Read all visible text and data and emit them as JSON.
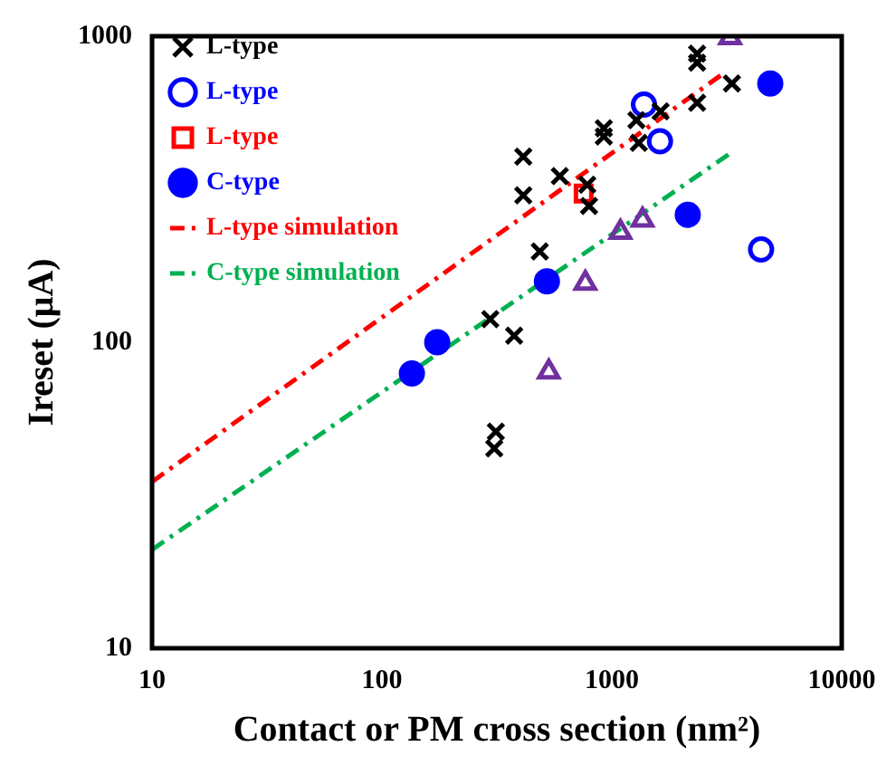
{
  "chart_data": {
    "type": "scatter",
    "xlabel": "Contact or PM cross section (nm²)",
    "ylabel": "Ireset (μA)",
    "log": "xy",
    "xlim": [
      10,
      10000
    ],
    "ylim": [
      10,
      1000
    ],
    "xticks": [
      10,
      100,
      1000,
      10000
    ],
    "yticks": [
      10,
      100,
      1000
    ],
    "grid": false,
    "legend": "top left",
    "series": [
      {
        "name": "L-type",
        "color": "#000000",
        "marker": "cross",
        "x": [
          412,
          412,
          594,
          782,
          796,
          486,
          296,
          376,
          313,
          308,
          923,
          923,
          1280,
          1310,
          1630,
          2350,
          2350,
          2350,
          3330
        ],
        "values": [
          404,
          302,
          349,
          327,
          279,
          198,
          119,
          105,
          51,
          45,
          500,
          470,
          532,
          448,
          568,
          877,
          820,
          606,
          701
        ]
      },
      {
        "name": "L-type",
        "color": "#0000ff",
        "marker": "circle",
        "x": [
          1380,
          1620,
          4460
        ],
        "values": [
          598,
          454,
          201
        ]
      },
      {
        "name": "L-type",
        "color": "#ff0000",
        "marker": "square",
        "x": [
          754
        ],
        "values": [
          306
        ]
      },
      {
        "color": "#7030a0",
        "marker": "triangle",
        "x": [
          3270,
          1090,
          1360,
          767,
          532
        ],
        "values": [
          990,
          229,
          251,
          156,
          80
        ]
      },
      {
        "name": "C-type",
        "color": "#0000ff",
        "marker": "circle",
        "x": [
          135,
          174,
          522,
          2140,
          4890
        ],
        "values": [
          79,
          100,
          158,
          261,
          701
        ]
      },
      {
        "type": "line",
        "name": "L-type simulation",
        "color": "#ff0000",
        "line_style": "dashed",
        "marker": "none",
        "x": [
          10,
          3090
        ],
        "values": [
          35,
          760
        ]
      },
      {
        "type": "line",
        "name": "C-type simulation",
        "color": "#00b050",
        "line_style": "dashed",
        "marker": "none",
        "x": [
          10,
          3270
        ],
        "values": [
          21,
          414
        ]
      }
    ]
  }
}
